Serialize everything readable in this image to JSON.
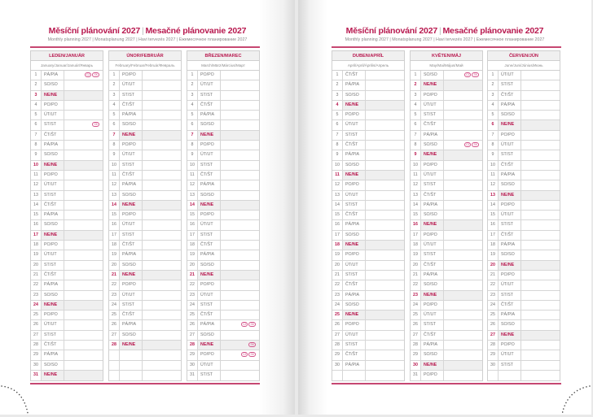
{
  "title_cz": "Měsíční plánování 2027",
  "title_sk": "Mesačné plánovanie 2027",
  "subtitle": "Monthly planning 2027 | Monatsplanung 2027 | Havi tervezés 2027 | Ежемесячное планирование 2027",
  "weekday_labels": [
    "PO/PO",
    "ÚT/UT",
    "ST/ST",
    "ČT/ŠT",
    "PÁ/PIA",
    "SO/SO",
    "NE/NE"
  ],
  "sunday_index": 6,
  "colors": {
    "accent": "#b8194f",
    "sunday_bg": "#efefef"
  },
  "pages": [
    {
      "months": [
        {
          "name": "LEDEN/JANUÁR",
          "subtitle": "January/Januar/Január/Январь",
          "first_weekday": 4,
          "days": 31,
          "holidays": {
            "1": [
              "CZ",
              "SK"
            ],
            "6": [
              "SK"
            ]
          }
        },
        {
          "name": "ÚNOR/FEBRUÁR",
          "subtitle": "February/Februar/Február/Февраль",
          "first_weekday": 0,
          "days": 28,
          "holidays": {}
        },
        {
          "name": "BŘEZEN/MAREC",
          "subtitle": "March/März/Március/Март",
          "first_weekday": 0,
          "days": 31,
          "holidays": {
            "26": [
              "CZ",
              "SK"
            ],
            "28": [
              "SK"
            ],
            "29": [
              "CZ",
              "SK"
            ]
          }
        }
      ]
    },
    {
      "months": [
        {
          "name": "DUBEN/APRÍL",
          "subtitle": "April/April/Április/Апрель",
          "first_weekday": 3,
          "days": 30,
          "holidays": {}
        },
        {
          "name": "KVĚTEN/MÁJ",
          "subtitle": "May/Mai/Május/Май",
          "first_weekday": 5,
          "days": 31,
          "holidays": {
            "1": [
              "CZ",
              "SK"
            ],
            "8": [
              "CZ",
              "SK"
            ]
          }
        },
        {
          "name": "ČERVEN/JÚN",
          "subtitle": "June/Juni/Június/Июнь",
          "first_weekday": 1,
          "days": 30,
          "holidays": {}
        }
      ]
    }
  ]
}
